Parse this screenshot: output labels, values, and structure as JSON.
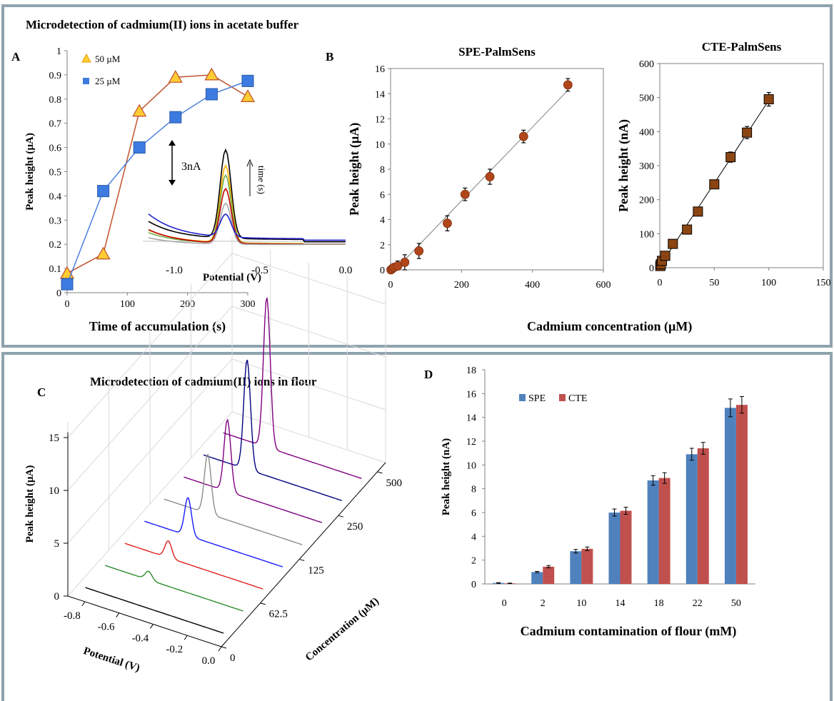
{
  "panels": {
    "top_title": "Microdetection of cadmium(II) ions in acetate buffer",
    "label_a": "A",
    "label_b": "B",
    "label_c": "C",
    "label_d": "D",
    "bottom_c_title": "Microdetection of cadmium(II) ions in flour",
    "shared_x_label_b": "Cadmium concentration (µM)"
  },
  "chart_data": [
    {
      "id": "A",
      "type": "line",
      "xlabel": "Time of accumulation (s)",
      "ylabel": "Peak height (µA)",
      "xlim": [
        0,
        300
      ],
      "ylim": [
        0,
        1
      ],
      "x_ticks": [
        "0",
        "100",
        "200",
        "300"
      ],
      "y_ticks": [
        "0",
        "0.1",
        "0.2",
        "0.3",
        "0.4",
        "0.5",
        "0.6",
        "0.7",
        "0.8",
        "0.9",
        "1"
      ],
      "legend_position": "top-left",
      "series": [
        {
          "name": "50 µM",
          "marker": "triangle",
          "color": "#c0502b",
          "marker_fill": "#ffcc33",
          "x": [
            0,
            60,
            120,
            180,
            240,
            300
          ],
          "y": [
            0.08,
            0.16,
            0.75,
            0.89,
            0.9,
            0.81
          ]
        },
        {
          "name": "25 µM",
          "marker": "square",
          "color": "#4a7fe0",
          "marker_fill": "#3d7be0",
          "x": [
            0,
            60,
            120,
            180,
            240,
            300
          ],
          "y": [
            0.035,
            0.42,
            0.6,
            0.725,
            0.82,
            0.875
          ]
        }
      ],
      "inset": {
        "xlabel": "Potential (V)",
        "x_ticks": [
          "-1.0",
          "-0.5",
          "0.0"
        ],
        "xlim": [
          -1.15,
          0.0
        ],
        "scale_bar": "3nA",
        "arrow_label": "time (s)",
        "peak_position": -0.7,
        "peaks": [
          {
            "color": "#000000",
            "peak": 7.8,
            "base": 1.6,
            "tail": 1.0
          },
          {
            "color": "#ffb000",
            "peak": 6.8,
            "base": 1.2,
            "tail": 0.4
          },
          {
            "color": "#70ad47",
            "peak": 6.0,
            "base": 1.0,
            "tail": 0.35
          },
          {
            "color": "#c00000",
            "peak": 4.8,
            "base": 1.3,
            "tail": 0.3
          },
          {
            "color": "#a6a6a6",
            "peak": 3.6,
            "base": 0.6,
            "tail": 0.25
          },
          {
            "color": "#2222cc",
            "peak": 2.0,
            "base": 2.2,
            "tail": 1.1
          }
        ]
      }
    },
    {
      "id": "B1",
      "type": "scatter",
      "title": "SPE-PalmSens",
      "ylabel": "Peak height (µA)",
      "xlim": [
        0,
        600
      ],
      "ylim": [
        0,
        16
      ],
      "x_ticks": [
        "0",
        "200",
        "400",
        "600"
      ],
      "y_ticks": [
        "0",
        "2",
        "4",
        "6",
        "8",
        "10",
        "12",
        "14",
        "16"
      ],
      "fit_line": true,
      "x": [
        1,
        5,
        10,
        20,
        40,
        80,
        160,
        210,
        280,
        375,
        500
      ],
      "y": [
        0.0,
        0.1,
        0.2,
        0.3,
        0.6,
        1.5,
        3.7,
        6.0,
        7.4,
        10.6,
        14.7
      ],
      "error": [
        0.2,
        0.2,
        0.3,
        0.4,
        0.6,
        0.6,
        0.6,
        0.5,
        0.6,
        0.5,
        0.5
      ],
      "color": "#b0461a"
    },
    {
      "id": "B2",
      "type": "scatter",
      "title": "CTE-PalmSens",
      "ylabel": "Peak height (nA)",
      "xlim": [
        0,
        150
      ],
      "ylim": [
        0,
        600
      ],
      "x_ticks": [
        "0",
        "50",
        "100",
        "150"
      ],
      "y_ticks": [
        "0",
        "100",
        "200",
        "300",
        "400",
        "500",
        "600"
      ],
      "fit_line": true,
      "x": [
        0.5,
        1,
        2,
        5,
        12,
        25,
        35,
        50,
        65,
        80,
        100
      ],
      "y": [
        5,
        10,
        20,
        35,
        70,
        112,
        165,
        245,
        325,
        397,
        495
      ],
      "error": [
        3,
        3,
        4,
        4,
        5,
        5,
        5,
        6,
        15,
        18,
        20
      ],
      "color": "#8b4513"
    },
    {
      "id": "C",
      "type": "line",
      "title": "Microdetection of cadmium(II) ions in flour",
      "xlabel": "Potential (V)",
      "ylabel": "Peak height (µA)",
      "zlabel": "Concentration (µM)",
      "potential_ticks": [
        "-0.8",
        "-0.6",
        "-0.4",
        "-0.2",
        "0.0"
      ],
      "concentration_ticks": [
        "0",
        "62.5",
        "125",
        "250",
        "500"
      ],
      "height_ticks": [
        "0",
        "5",
        "10",
        "15"
      ],
      "series": [
        {
          "color": "#000000",
          "peak": 0.0
        },
        {
          "color": "#2e8b2e",
          "peak": 0.8
        },
        {
          "color": "#e02020",
          "peak": 1.6
        },
        {
          "color": "#1a1aff",
          "peak": 3.6
        },
        {
          "color": "#8c8c8c",
          "peak": 5.6
        },
        {
          "color": "#800080",
          "peak": 6.8
        },
        {
          "color": "#000080",
          "peak": 10.4
        },
        {
          "color": "#800080",
          "peak": 14.2
        }
      ]
    },
    {
      "id": "D",
      "type": "bar",
      "xlabel": "Cadmium contamination of flour (mM)",
      "ylabel": "Peak height (nA)",
      "categories": [
        "0",
        "2",
        "10",
        "14",
        "18",
        "22",
        "50"
      ],
      "ylim": [
        0,
        18
      ],
      "y_ticks": [
        "0",
        "2",
        "4",
        "6",
        "8",
        "10",
        "12",
        "14",
        "16",
        "18"
      ],
      "legend_position": "top-left",
      "series": [
        {
          "name": "SPE",
          "color": "#4f81bd",
          "values": [
            0.08,
            1.0,
            2.75,
            6.0,
            8.7,
            10.9,
            14.8
          ],
          "error": [
            0.03,
            0.05,
            0.15,
            0.3,
            0.4,
            0.5,
            0.75
          ]
        },
        {
          "name": "CTE",
          "color": "#c0504d",
          "values": [
            0.05,
            1.45,
            2.95,
            6.15,
            8.9,
            11.4,
            15.05
          ],
          "error": [
            0.02,
            0.1,
            0.15,
            0.3,
            0.45,
            0.5,
            0.7
          ]
        }
      ]
    }
  ]
}
